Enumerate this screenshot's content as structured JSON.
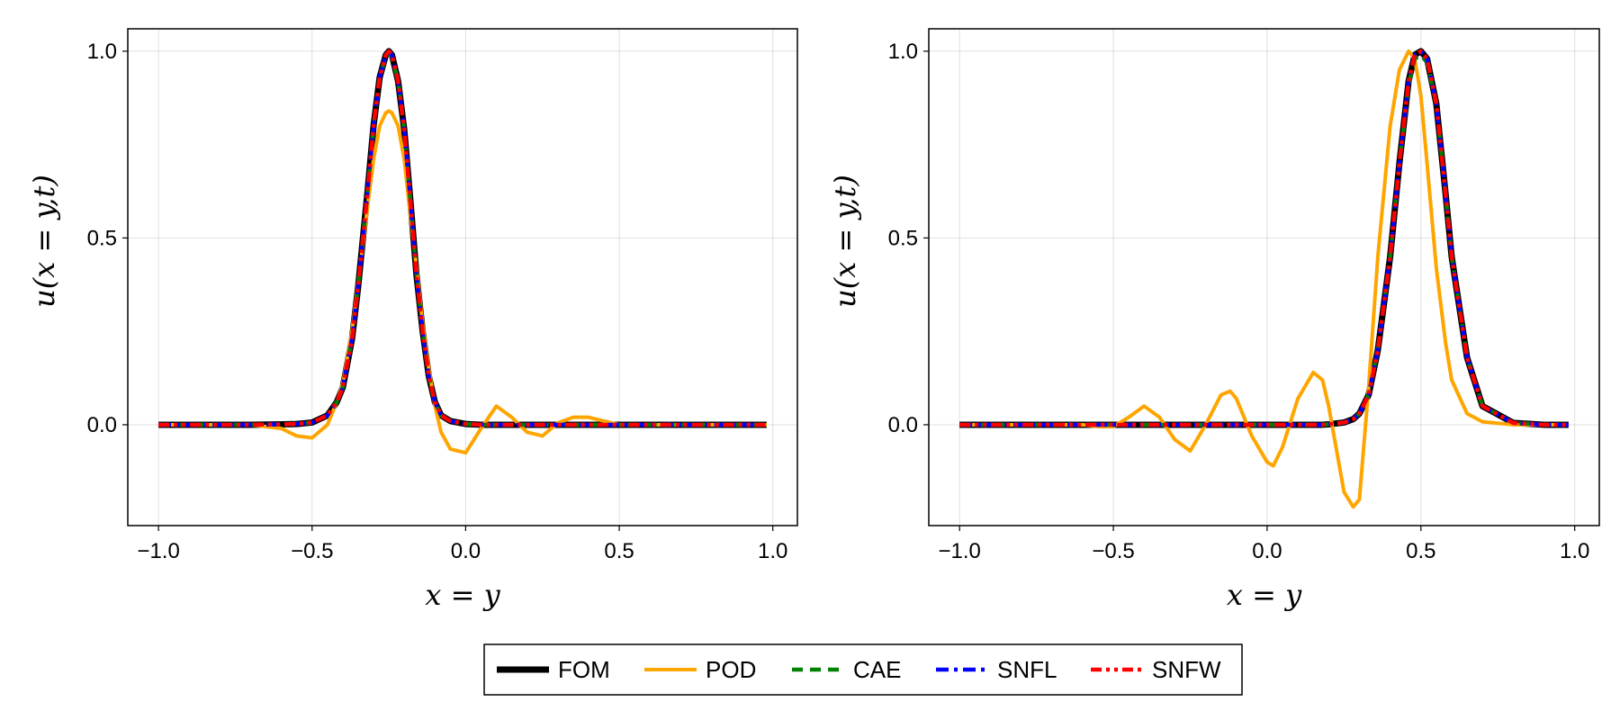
{
  "chart_data": [
    {
      "type": "line",
      "xlabel": "x = y",
      "ylabel": "u(x = y,t)",
      "xlim": [
        -1.1,
        1.08
      ],
      "ylim": [
        -0.27,
        1.06
      ],
      "xticks": [
        -1.0,
        -0.5,
        0.0,
        0.5,
        1.0
      ],
      "xtick_labels": [
        "−1.0",
        "−0.5",
        "0.0",
        "0.5",
        "1.0"
      ],
      "yticks": [
        0.0,
        0.5,
        1.0
      ],
      "ytick_labels": [
        "0.0",
        "0.5",
        "1.0"
      ],
      "grid": true,
      "x": [
        -1.0,
        -0.9,
        -0.8,
        -0.7,
        -0.6,
        -0.55,
        -0.5,
        -0.45,
        -0.42,
        -0.4,
        -0.37,
        -0.35,
        -0.32,
        -0.3,
        -0.28,
        -0.26,
        -0.25,
        -0.24,
        -0.22,
        -0.2,
        -0.18,
        -0.16,
        -0.14,
        -0.12,
        -0.1,
        -0.08,
        -0.05,
        0.0,
        0.05,
        0.1,
        0.15,
        0.2,
        0.25,
        0.3,
        0.35,
        0.4,
        0.45,
        0.5,
        0.6,
        0.7,
        0.8,
        0.9,
        0.98
      ],
      "series": [
        {
          "name": "FOM",
          "color": "#000000",
          "values": [
            0.0,
            0.0,
            0.0,
            0.0,
            0.001,
            0.002,
            0.006,
            0.025,
            0.06,
            0.1,
            0.23,
            0.37,
            0.62,
            0.8,
            0.93,
            0.99,
            1.0,
            0.99,
            0.92,
            0.79,
            0.6,
            0.4,
            0.25,
            0.13,
            0.06,
            0.025,
            0.01,
            0.002,
            0.0,
            0.0,
            0.0,
            0.0,
            0.0,
            0.0,
            0.0,
            0.0,
            0.0,
            0.0,
            0.0,
            0.0,
            0.0,
            0.0,
            0.0
          ]
        },
        {
          "name": "POD",
          "color": "#ffa500",
          "values": [
            0.0,
            0.0,
            0.0,
            0.0,
            -0.01,
            -0.03,
            -0.035,
            0.0,
            0.06,
            0.11,
            0.25,
            0.38,
            0.58,
            0.71,
            0.8,
            0.835,
            0.84,
            0.835,
            0.8,
            0.71,
            0.56,
            0.42,
            0.27,
            0.15,
            0.05,
            -0.02,
            -0.065,
            -0.075,
            -0.01,
            0.05,
            0.02,
            -0.02,
            -0.03,
            0.005,
            0.02,
            0.02,
            0.01,
            0.0,
            0.0,
            0.0,
            0.0,
            0.0,
            0.0
          ]
        },
        {
          "name": "CAE",
          "color": "#008000",
          "values": [
            0.0,
            0.0,
            0.0,
            0.0,
            0.001,
            0.002,
            0.006,
            0.025,
            0.06,
            0.1,
            0.23,
            0.37,
            0.62,
            0.8,
            0.93,
            0.985,
            0.995,
            0.985,
            0.92,
            0.79,
            0.6,
            0.4,
            0.25,
            0.13,
            0.06,
            0.025,
            0.01,
            0.002,
            0.0,
            0.0,
            0.0,
            0.0,
            0.0,
            0.0,
            0.0,
            0.0,
            0.0,
            0.0,
            0.0,
            0.0,
            0.0,
            0.0,
            0.0
          ]
        },
        {
          "name": "SNFL",
          "color": "#0000ff",
          "values": [
            0.0,
            0.0,
            0.0,
            0.0,
            0.001,
            0.002,
            0.006,
            0.025,
            0.06,
            0.1,
            0.23,
            0.37,
            0.62,
            0.8,
            0.93,
            0.99,
            1.0,
            0.99,
            0.92,
            0.79,
            0.6,
            0.4,
            0.25,
            0.13,
            0.06,
            0.025,
            0.01,
            0.002,
            0.0,
            0.0,
            0.0,
            0.0,
            0.0,
            0.0,
            0.0,
            0.0,
            0.0,
            0.0,
            0.0,
            0.0,
            0.0,
            0.0,
            0.0
          ]
        },
        {
          "name": "SNFW",
          "color": "#ff0000",
          "values": [
            0.0,
            0.0,
            0.0,
            0.0,
            0.001,
            0.002,
            0.006,
            0.025,
            0.06,
            0.1,
            0.23,
            0.37,
            0.62,
            0.8,
            0.93,
            0.99,
            1.0,
            0.99,
            0.92,
            0.79,
            0.6,
            0.4,
            0.25,
            0.13,
            0.06,
            0.025,
            0.01,
            0.002,
            0.0,
            0.0,
            0.0,
            0.0,
            0.0,
            0.0,
            0.0,
            0.0,
            0.0,
            0.0,
            0.0,
            0.0,
            0.0,
            0.0,
            0.0
          ]
        }
      ]
    },
    {
      "type": "line",
      "xlabel": "x = y",
      "ylabel": "u(x = y,t)",
      "xlim": [
        -1.1,
        1.08
      ],
      "ylim": [
        -0.27,
        1.06
      ],
      "xticks": [
        -1.0,
        -0.5,
        0.0,
        0.5,
        1.0
      ],
      "xtick_labels": [
        "−1.0",
        "−0.5",
        "0.0",
        "0.5",
        "1.0"
      ],
      "yticks": [
        0.0,
        0.5,
        1.0
      ],
      "ytick_labels": [
        "0.0",
        "0.5",
        "1.0"
      ],
      "grid": true,
      "x": [
        -1.0,
        -0.9,
        -0.8,
        -0.7,
        -0.6,
        -0.55,
        -0.5,
        -0.45,
        -0.4,
        -0.35,
        -0.3,
        -0.25,
        -0.2,
        -0.15,
        -0.12,
        -0.1,
        -0.05,
        0.0,
        0.02,
        0.05,
        0.1,
        0.15,
        0.18,
        0.2,
        0.25,
        0.28,
        0.3,
        0.33,
        0.36,
        0.4,
        0.43,
        0.46,
        0.48,
        0.5,
        0.52,
        0.55,
        0.58,
        0.6,
        0.65,
        0.7,
        0.8,
        0.9,
        0.98
      ],
      "series": [
        {
          "name": "FOM",
          "color": "#000000",
          "values": [
            0.0,
            0.0,
            0.0,
            0.0,
            0.0,
            0.0,
            0.0,
            0.0,
            0.0,
            0.0,
            0.0,
            0.0,
            0.0,
            0.0,
            0.0,
            0.0,
            0.0,
            0.0,
            0.0,
            0.0,
            0.0,
            0.0,
            0.0,
            0.001,
            0.006,
            0.015,
            0.03,
            0.08,
            0.2,
            0.45,
            0.7,
            0.92,
            0.99,
            1.0,
            0.98,
            0.86,
            0.62,
            0.45,
            0.18,
            0.05,
            0.005,
            0.0,
            0.0
          ]
        },
        {
          "name": "POD",
          "color": "#ffa500",
          "values": [
            0.0,
            0.0,
            0.0,
            0.0,
            0.0,
            -0.005,
            -0.005,
            0.02,
            0.05,
            0.02,
            -0.04,
            -0.07,
            0.0,
            0.08,
            0.09,
            0.07,
            -0.03,
            -0.1,
            -0.11,
            -0.06,
            0.07,
            0.14,
            0.12,
            0.05,
            -0.18,
            -0.22,
            -0.2,
            0.1,
            0.45,
            0.8,
            0.95,
            1.0,
            0.98,
            0.88,
            0.7,
            0.42,
            0.22,
            0.12,
            0.03,
            0.008,
            0.0,
            0.0,
            0.0
          ]
        },
        {
          "name": "CAE",
          "color": "#008000",
          "values": [
            0.0,
            0.0,
            0.0,
            0.0,
            0.0,
            0.0,
            0.0,
            0.0,
            0.0,
            0.0,
            0.0,
            0.0,
            0.0,
            0.0,
            0.0,
            0.0,
            0.0,
            0.0,
            0.0,
            0.0,
            0.0,
            0.0,
            0.0,
            0.001,
            0.006,
            0.015,
            0.03,
            0.08,
            0.2,
            0.45,
            0.7,
            0.91,
            0.98,
            0.99,
            0.97,
            0.86,
            0.62,
            0.45,
            0.18,
            0.05,
            0.005,
            0.0,
            0.0
          ]
        },
        {
          "name": "SNFL",
          "color": "#0000ff",
          "values": [
            0.0,
            0.0,
            0.0,
            0.0,
            0.0,
            0.0,
            0.0,
            0.0,
            0.0,
            0.0,
            0.0,
            0.0,
            0.0,
            0.0,
            0.0,
            0.0,
            0.0,
            0.0,
            0.0,
            0.0,
            0.0,
            0.0,
            0.0,
            0.001,
            0.006,
            0.015,
            0.03,
            0.08,
            0.2,
            0.45,
            0.7,
            0.92,
            0.99,
            1.0,
            0.98,
            0.86,
            0.62,
            0.45,
            0.18,
            0.05,
            0.005,
            0.0,
            0.0
          ]
        },
        {
          "name": "SNFW",
          "color": "#ff0000",
          "values": [
            0.0,
            0.0,
            0.0,
            0.0,
            0.0,
            0.0,
            0.0,
            0.0,
            0.0,
            0.0,
            0.0,
            0.0,
            0.0,
            0.0,
            0.0,
            0.0,
            0.0,
            0.0,
            0.0,
            0.0,
            0.0,
            0.0,
            0.0,
            0.001,
            0.006,
            0.015,
            0.03,
            0.08,
            0.2,
            0.45,
            0.7,
            0.92,
            0.99,
            1.0,
            0.98,
            0.86,
            0.62,
            0.45,
            0.18,
            0.05,
            0.005,
            0.0,
            0.0
          ]
        }
      ]
    }
  ],
  "legend": {
    "position": "bottom-center",
    "entries": [
      {
        "label": "FOM",
        "color": "#000000",
        "style": "solid-thick"
      },
      {
        "label": "POD",
        "color": "#ffa500",
        "style": "solid"
      },
      {
        "label": "CAE",
        "color": "#008000",
        "style": "dashed"
      },
      {
        "label": "SNFL",
        "color": "#0000ff",
        "style": "dashdot"
      },
      {
        "label": "SNFW",
        "color": "#ff0000",
        "style": "dashdotdot"
      }
    ]
  }
}
